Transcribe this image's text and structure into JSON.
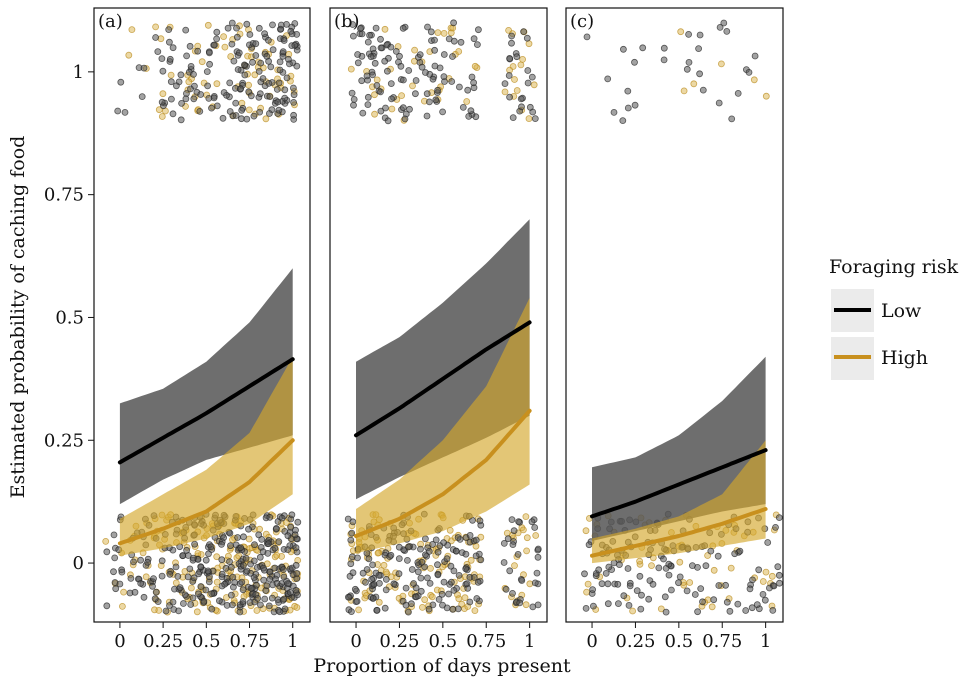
{
  "chart_data": {
    "type": "line",
    "xlabel": "Proportion of days present",
    "ylabel": "Estimated probability of caching food",
    "xlim": [
      -0.15,
      1.1
    ],
    "ylim": [
      -0.12,
      1.13
    ],
    "x_ticks": [
      {
        "value": 0,
        "label": "0"
      },
      {
        "value": 0.25,
        "label": "0.25"
      },
      {
        "value": 0.5,
        "label": "0.5"
      },
      {
        "value": 0.75,
        "label": "0.75"
      },
      {
        "value": 1,
        "label": "1"
      }
    ],
    "y_ticks": [
      {
        "value": 0,
        "label": "0"
      },
      {
        "value": 0.25,
        "label": "0.25"
      },
      {
        "value": 0.5,
        "label": "0.5"
      },
      {
        "value": 0.75,
        "label": "0.75"
      },
      {
        "value": 1,
        "label": "1"
      }
    ],
    "grid": false,
    "legend": {
      "title": "Foraging risk",
      "position": "right",
      "entries": [
        {
          "label": "Low",
          "color": "#000000"
        },
        {
          "label": "High",
          "color": "#c8901e"
        }
      ]
    },
    "colors": {
      "low": "#000000",
      "high": "#c8901e",
      "low_band": "#555555",
      "high_band": "#d4a72c"
    },
    "panels": [
      {
        "label": "(a)",
        "series": [
          {
            "name": "Low",
            "x": [
              0,
              0.25,
              0.5,
              0.75,
              1
            ],
            "y": [
              0.205,
              0.255,
              0.305,
              0.36,
              0.415
            ],
            "lower": [
              0.12,
              0.17,
              0.21,
              0.235,
              0.26
            ],
            "upper": [
              0.325,
              0.355,
              0.41,
              0.49,
              0.6
            ]
          },
          {
            "name": "High",
            "x": [
              0,
              0.25,
              0.5,
              0.75,
              1
            ],
            "y": [
              0.04,
              0.07,
              0.105,
              0.165,
              0.25
            ],
            "lower": [
              0.015,
              0.03,
              0.05,
              0.08,
              0.14
            ],
            "upper": [
              0.09,
              0.14,
              0.19,
              0.265,
              0.42
            ]
          }
        ],
        "points": {
          "low_top": {
            "n": 170,
            "x_range": [
              -0.05,
              1.03
            ],
            "x_skew": 1.8
          },
          "high_top": {
            "n": 70,
            "x_range": [
              -0.05,
              1.03
            ],
            "x_skew": 1.8
          },
          "low_bottom": {
            "n": 320,
            "x_range": [
              -0.1,
              1.03
            ],
            "x_skew": 1.6
          },
          "high_bottom": {
            "n": 200,
            "x_range": [
              -0.1,
              1.03
            ],
            "x_skew": 1.6
          }
        }
      },
      {
        "label": "(b)",
        "series": [
          {
            "name": "Low",
            "x": [
              0,
              0.25,
              0.5,
              0.75,
              1
            ],
            "y": [
              0.26,
              0.315,
              0.375,
              0.435,
              0.49
            ],
            "lower": [
              0.13,
              0.175,
              0.215,
              0.255,
              0.3
            ],
            "upper": [
              0.41,
              0.46,
              0.53,
              0.61,
              0.7
            ]
          },
          {
            "name": "High",
            "x": [
              0,
              0.25,
              0.5,
              0.75,
              1
            ],
            "y": [
              0.055,
              0.09,
              0.14,
              0.21,
              0.31
            ],
            "lower": [
              0.02,
              0.04,
              0.065,
              0.105,
              0.16
            ],
            "upper": [
              0.11,
              0.17,
              0.25,
              0.36,
              0.54
            ]
          }
        ],
        "points": {
          "low_top": {
            "n": 110,
            "x_range": [
              -0.03,
              0.72
            ],
            "x_skew": 1.0
          },
          "high_top": {
            "n": 35,
            "x_range": [
              -0.03,
              0.72
            ],
            "x_skew": 1.0
          },
          "low_top_right": {
            "n": 22,
            "x_range": [
              0.85,
              1.05
            ]
          },
          "high_top_right": {
            "n": 15,
            "x_range": [
              0.85,
              1.05
            ]
          },
          "low_bottom": {
            "n": 170,
            "x_range": [
              -0.05,
              0.72
            ],
            "x_skew": 1.0
          },
          "high_bottom": {
            "n": 120,
            "x_range": [
              -0.05,
              0.72
            ],
            "x_skew": 1.0
          },
          "low_bottom_right": {
            "n": 30,
            "x_range": [
              0.85,
              1.05
            ]
          },
          "high_bottom_right": {
            "n": 20,
            "x_range": [
              0.85,
              1.05
            ]
          }
        }
      },
      {
        "label": "(c)",
        "series": [
          {
            "name": "Low",
            "x": [
              0,
              0.25,
              0.5,
              0.75,
              1
            ],
            "y": [
              0.095,
              0.125,
              0.16,
              0.195,
              0.23
            ],
            "lower": [
              0.045,
              0.065,
              0.085,
              0.105,
              0.12
            ],
            "upper": [
              0.195,
              0.215,
              0.26,
              0.33,
              0.42
            ]
          },
          {
            "name": "High",
            "x": [
              0,
              0.25,
              0.5,
              0.75,
              1
            ],
            "y": [
              0.015,
              0.035,
              0.055,
              0.08,
              0.11
            ],
            "lower": [
              0.0,
              0.01,
              0.02,
              0.035,
              0.05
            ],
            "upper": [
              0.05,
              0.07,
              0.095,
              0.14,
              0.25
            ]
          }
        ],
        "points": {
          "low_top": {
            "n": 28,
            "x_range": [
              -0.05,
              1.05
            ]
          },
          "high_top": {
            "n": 6,
            "x_range": [
              0.4,
              1.05
            ]
          },
          "low_bottom": {
            "n": 140,
            "x_range": [
              -0.05,
              1.08
            ]
          },
          "high_bottom": {
            "n": 60,
            "x_range": [
              -0.05,
              1.08
            ]
          }
        }
      }
    ]
  }
}
